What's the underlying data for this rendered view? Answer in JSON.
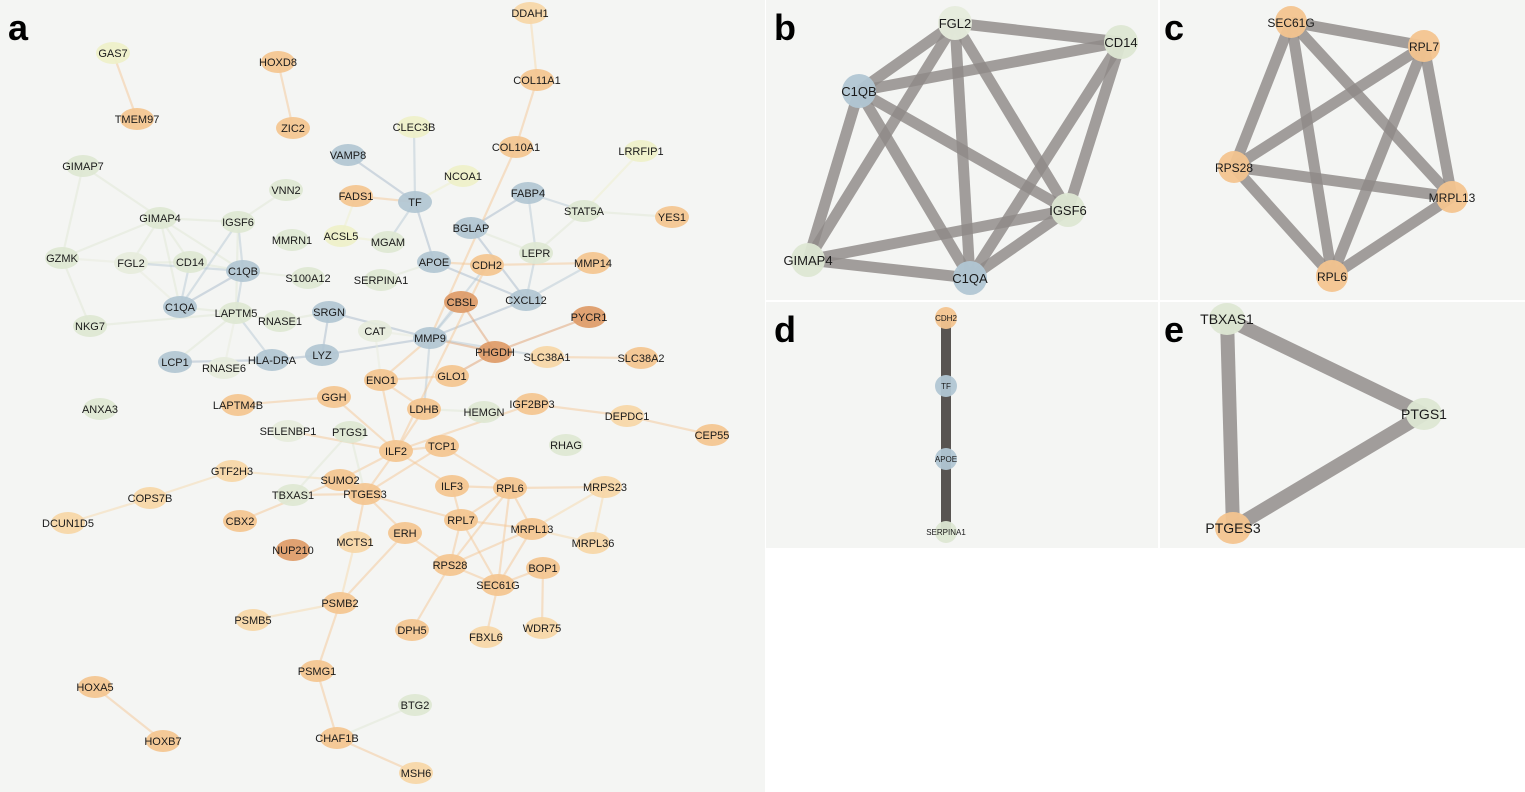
{
  "colors": {
    "green": "#dde7d3",
    "blue": "#b1c6d3",
    "orange": "#f3c48f",
    "dark_orange": "#dd9a67",
    "pale_yellow": "#eef0c9",
    "pale_orange": "#f6d6a6",
    "pale_green": "#e6ecdc",
    "edge_small": "#8f8a87"
  },
  "panels": {
    "a": {
      "label": "a",
      "nodes": [
        {
          "id": "DDAH1",
          "c": "pale_orange"
        },
        {
          "id": "GAS7",
          "c": "pale_yellow"
        },
        {
          "id": "HOXD8",
          "c": "orange"
        },
        {
          "id": "COL11A1",
          "c": "orange"
        },
        {
          "id": "TMEM97",
          "c": "orange"
        },
        {
          "id": "ZIC2",
          "c": "orange"
        },
        {
          "id": "CLEC3B",
          "c": "pale_yellow"
        },
        {
          "id": "COL10A1",
          "c": "orange"
        },
        {
          "id": "LRRFIP1",
          "c": "pale_yellow"
        },
        {
          "id": "VAMP8",
          "c": "blue"
        },
        {
          "id": "NCOA1",
          "c": "pale_yellow"
        },
        {
          "id": "GIMAP7",
          "c": "green"
        },
        {
          "id": "VNN2",
          "c": "green"
        },
        {
          "id": "FADS1",
          "c": "orange"
        },
        {
          "id": "TF",
          "c": "blue"
        },
        {
          "id": "FABP4",
          "c": "blue"
        },
        {
          "id": "STAT5A",
          "c": "green"
        },
        {
          "id": "YES1",
          "c": "orange"
        },
        {
          "id": "GIMAP4",
          "c": "green"
        },
        {
          "id": "IGSF6",
          "c": "green"
        },
        {
          "id": "BGLAP",
          "c": "blue"
        },
        {
          "id": "MMRN1",
          "c": "green"
        },
        {
          "id": "ACSL5",
          "c": "pale_yellow"
        },
        {
          "id": "MGAM",
          "c": "green"
        },
        {
          "id": "GZMK",
          "c": "green"
        },
        {
          "id": "FGL2",
          "c": "pale_green"
        },
        {
          "id": "CD14",
          "c": "green"
        },
        {
          "id": "APOE",
          "c": "blue"
        },
        {
          "id": "LEPR",
          "c": "green"
        },
        {
          "id": "C1QB",
          "c": "blue"
        },
        {
          "id": "CDH2",
          "c": "orange"
        },
        {
          "id": "MMP14",
          "c": "orange"
        },
        {
          "id": "S100A12",
          "c": "green"
        },
        {
          "id": "SERPINA1",
          "c": "green"
        },
        {
          "id": "CXCL12",
          "c": "blue"
        },
        {
          "id": "C1QA",
          "c": "blue"
        },
        {
          "id": "LAPTM5",
          "c": "green"
        },
        {
          "id": "CBSL",
          "c": "dark_orange"
        },
        {
          "id": "SRGN",
          "c": "blue"
        },
        {
          "id": "NKG7",
          "c": "green"
        },
        {
          "id": "RNASE1",
          "c": "green"
        },
        {
          "id": "PYCR1",
          "c": "dark_orange"
        },
        {
          "id": "CAT",
          "c": "pale_green"
        },
        {
          "id": "MMP9",
          "c": "blue"
        },
        {
          "id": "LCP1",
          "c": "blue"
        },
        {
          "id": "HLA-DRA",
          "c": "blue"
        },
        {
          "id": "LYZ",
          "c": "blue"
        },
        {
          "id": "PHGDH",
          "c": "dark_orange"
        },
        {
          "id": "SLC38A1",
          "c": "pale_orange"
        },
        {
          "id": "SLC38A2",
          "c": "orange"
        },
        {
          "id": "RNASE6",
          "c": "pale_green"
        },
        {
          "id": "ENO1",
          "c": "orange"
        },
        {
          "id": "GLO1",
          "c": "orange"
        },
        {
          "id": "ANXA3",
          "c": "green"
        },
        {
          "id": "GGH",
          "c": "orange"
        },
        {
          "id": "LAPTM4B",
          "c": "orange"
        },
        {
          "id": "IGF2BP3",
          "c": "orange"
        },
        {
          "id": "LDHB",
          "c": "orange"
        },
        {
          "id": "HEMGN",
          "c": "green"
        },
        {
          "id": "DEPDC1",
          "c": "pale_orange"
        },
        {
          "id": "SELENBP1",
          "c": "pale_green"
        },
        {
          "id": "PTGS1",
          "c": "green"
        },
        {
          "id": "CEP55",
          "c": "orange"
        },
        {
          "id": "RHAG",
          "c": "green"
        },
        {
          "id": "ILF2",
          "c": "orange"
        },
        {
          "id": "TCP1",
          "c": "orange"
        },
        {
          "id": "GTF2H3",
          "c": "pale_orange"
        },
        {
          "id": "SUMO2",
          "c": "orange"
        },
        {
          "id": "ILF3",
          "c": "orange"
        },
        {
          "id": "RPL6",
          "c": "orange"
        },
        {
          "id": "MRPS23",
          "c": "pale_orange"
        },
        {
          "id": "COPS7B",
          "c": "pale_orange"
        },
        {
          "id": "TBXAS1",
          "c": "green"
        },
        {
          "id": "PTGES3",
          "c": "orange"
        },
        {
          "id": "CBX2",
          "c": "orange"
        },
        {
          "id": "DCUN1D5",
          "c": "pale_orange"
        },
        {
          "id": "RPL7",
          "c": "orange"
        },
        {
          "id": "MRPL13",
          "c": "orange"
        },
        {
          "id": "ERH",
          "c": "orange"
        },
        {
          "id": "MCTS1",
          "c": "pale_orange"
        },
        {
          "id": "MRPL36",
          "c": "pale_orange"
        },
        {
          "id": "NUP210",
          "c": "dark_orange"
        },
        {
          "id": "RPS28",
          "c": "orange"
        },
        {
          "id": "BOP1",
          "c": "orange"
        },
        {
          "id": "SEC61G",
          "c": "orange"
        },
        {
          "id": "PSMB2",
          "c": "orange"
        },
        {
          "id": "PSMB5",
          "c": "pale_orange"
        },
        {
          "id": "DPH5",
          "c": "orange"
        },
        {
          "id": "FBXL6",
          "c": "pale_orange"
        },
        {
          "id": "WDR75",
          "c": "pale_orange"
        },
        {
          "id": "PSMG1",
          "c": "orange"
        },
        {
          "id": "HOXA5",
          "c": "orange"
        },
        {
          "id": "BTG2",
          "c": "green"
        },
        {
          "id": "HOXB7",
          "c": "orange"
        },
        {
          "id": "CHAF1B",
          "c": "orange"
        },
        {
          "id": "MSH6",
          "c": "pale_orange"
        }
      ],
      "edges": [
        [
          "GAS7",
          "TMEM97"
        ],
        [
          "HOXD8",
          "ZIC2"
        ],
        [
          "DDAH1",
          "COL11A1"
        ],
        [
          "COL11A1",
          "COL10A1"
        ],
        [
          "HOXA5",
          "HOXB7"
        ],
        [
          "GIMAP7",
          "GIMAP4"
        ],
        [
          "GIMAP7",
          "GZMK"
        ],
        [
          "GIMAP4",
          "IGSF6"
        ],
        [
          "GIMAP4",
          "FGL2"
        ],
        [
          "GIMAP4",
          "CD14"
        ],
        [
          "GIMAP4",
          "C1QB"
        ],
        [
          "GIMAP4",
          "C1QA"
        ],
        [
          "GIMAP4",
          "GZMK"
        ],
        [
          "GZMK",
          "FGL2"
        ],
        [
          "GZMK",
          "NKG7"
        ],
        [
          "NKG7",
          "LAPTM5"
        ],
        [
          "FGL2",
          "CD14"
        ],
        [
          "FGL2",
          "C1QB"
        ],
        [
          "FGL2",
          "C1QA"
        ],
        [
          "CD14",
          "C1QA"
        ],
        [
          "CD14",
          "C1QB"
        ],
        [
          "IGSF6",
          "C1QB"
        ],
        [
          "IGSF6",
          "C1QA"
        ],
        [
          "IGSF6",
          "LAPTM5"
        ],
        [
          "IGSF6",
          "VNN2"
        ],
        [
          "C1QB",
          "C1QA"
        ],
        [
          "C1QB",
          "LAPTM5"
        ],
        [
          "C1QB",
          "S100A12"
        ],
        [
          "C1QA",
          "LAPTM5"
        ],
        [
          "LAPTM5",
          "RNASE1"
        ],
        [
          "LAPTM5",
          "HLA-DRA"
        ],
        [
          "LAPTM5",
          "LCP1"
        ],
        [
          "LAPTM5",
          "RNASE6"
        ],
        [
          "LCP1",
          "HLA-DRA"
        ],
        [
          "HLA-DRA",
          "LYZ"
        ],
        [
          "HLA-DRA",
          "RNASE6"
        ],
        [
          "LYZ",
          "SRGN"
        ],
        [
          "SRGN",
          "MMP9"
        ],
        [
          "RNASE1",
          "SRGN"
        ],
        [
          "LYZ",
          "MMP9"
        ],
        [
          "CAT",
          "MMP9"
        ],
        [
          "TF",
          "APOE"
        ],
        [
          "TF",
          "VAMP8"
        ],
        [
          "TF",
          "FADS1"
        ],
        [
          "TF",
          "NCOA1"
        ],
        [
          "TF",
          "MGAM"
        ],
        [
          "APOE",
          "SERPINA1"
        ],
        [
          "APOE",
          "CDH2"
        ],
        [
          "APOE",
          "CXCL12"
        ],
        [
          "BGLAP",
          "FABP4"
        ],
        [
          "BGLAP",
          "LEPR"
        ],
        [
          "BGLAP",
          "CXCL12"
        ],
        [
          "FABP4",
          "STAT5A"
        ],
        [
          "FABP4",
          "LEPR"
        ],
        [
          "STAT5A",
          "LRRFIP1"
        ],
        [
          "STAT5A",
          "YES1"
        ],
        [
          "STAT5A",
          "LEPR"
        ],
        [
          "LEPR",
          "CXCL12"
        ],
        [
          "CXCL12",
          "MMP9"
        ],
        [
          "CXCL12",
          "MMP14"
        ],
        [
          "MMP9",
          "CDH2"
        ],
        [
          "MMP9",
          "CBSL"
        ],
        [
          "MMP9",
          "PHGDH"
        ],
        [
          "MMP9",
          "SLC38A1"
        ],
        [
          "MMP9",
          "ENO1"
        ],
        [
          "MMP9",
          "LDHB"
        ],
        [
          "MMP9",
          "COL10A1"
        ],
        [
          "CDH2",
          "MMP14"
        ],
        [
          "CBSL",
          "PHGDH"
        ],
        [
          "PYCR1",
          "PHGDH"
        ],
        [
          "SLC38A1",
          "SLC38A2"
        ],
        [
          "ENO1",
          "LDHB"
        ],
        [
          "ENO1",
          "GLO1"
        ],
        [
          "ENO1",
          "CAT"
        ],
        [
          "ENO1",
          "ILF2"
        ],
        [
          "GLO1",
          "PHGDH"
        ],
        [
          "LDHB",
          "ILF2"
        ],
        [
          "IGF2BP3",
          "DEPDC1"
        ],
        [
          "DEPDC1",
          "CEP55"
        ],
        [
          "IGF2BP3",
          "ILF2"
        ],
        [
          "GGH",
          "LAPTM4B"
        ],
        [
          "GGH",
          "ILF2"
        ],
        [
          "ILF2",
          "ILF3"
        ],
        [
          "ILF2",
          "SUMO2"
        ],
        [
          "ILF2",
          "PTGES3"
        ],
        [
          "ILF2",
          "TCP1"
        ],
        [
          "ILF2",
          "CDH2"
        ],
        [
          "TCP1",
          "RPL6"
        ],
        [
          "TCP1",
          "PTGES3"
        ],
        [
          "SUMO2",
          "PTGES3"
        ],
        [
          "SUMO2",
          "GTF2H3"
        ],
        [
          "GTF2H3",
          "COPS7B"
        ],
        [
          "COPS7B",
          "DCUN1D5"
        ],
        [
          "PTGS1",
          "TBXAS1"
        ],
        [
          "PTGS1",
          "PTGES3"
        ],
        [
          "TBXAS1",
          "PTGES3"
        ],
        [
          "PTGES3",
          "RPL7"
        ],
        [
          "PTGES3",
          "ERH"
        ],
        [
          "PTGES3",
          "MCTS1"
        ],
        [
          "ILF3",
          "RPL6"
        ],
        [
          "ILF3",
          "RPL7"
        ],
        [
          "RPL6",
          "RPL7"
        ],
        [
          "RPL6",
          "MRPL13"
        ],
        [
          "RPL6",
          "RPS28"
        ],
        [
          "RPL6",
          "SEC61G"
        ],
        [
          "RPL6",
          "MRPS23"
        ],
        [
          "RPL7",
          "MRPL13"
        ],
        [
          "RPL7",
          "RPS28"
        ],
        [
          "RPL7",
          "SEC61G"
        ],
        [
          "MRPL13",
          "RPS28"
        ],
        [
          "MRPL13",
          "SEC61G"
        ],
        [
          "MRPL13",
          "MRPL36"
        ],
        [
          "MRPS23",
          "MRPL36"
        ],
        [
          "MRPS23",
          "MRPL13"
        ],
        [
          "RPS28",
          "SEC61G"
        ],
        [
          "RPS28",
          "ERH"
        ],
        [
          "BOP1",
          "WDR75"
        ],
        [
          "BOP1",
          "SEC61G"
        ],
        [
          "SEC61G",
          "FBXL6"
        ],
        [
          "ERH",
          "PSMB2"
        ],
        [
          "PSMB2",
          "PSMB5"
        ],
        [
          "PSMB2",
          "PSMG1"
        ],
        [
          "PSMG1",
          "CHAF1B"
        ],
        [
          "CHAF1B",
          "BTG2"
        ],
        [
          "CHAF1B",
          "MSH6"
        ],
        [
          "MCTS1",
          "PSMB2"
        ],
        [
          "DPH5",
          "RPS28"
        ],
        [
          "SELENBP1",
          "ILF2"
        ],
        [
          "CBX2",
          "SUMO2"
        ],
        [
          "HEMGN",
          "LDHB"
        ],
        [
          "FADS1",
          "ACSL5"
        ],
        [
          "ACSL5",
          "MGAM"
        ],
        [
          "CLEC3B",
          "TF"
        ]
      ]
    },
    "b": {
      "label": "b",
      "nodes": [
        {
          "id": "FGL2",
          "c": "pale_green"
        },
        {
          "id": "CD14",
          "c": "green"
        },
        {
          "id": "C1QB",
          "c": "blue"
        },
        {
          "id": "IGSF6",
          "c": "green"
        },
        {
          "id": "GIMAP4",
          "c": "green"
        },
        {
          "id": "C1QA",
          "c": "blue"
        }
      ],
      "edges": [
        [
          "FGL2",
          "CD14"
        ],
        [
          "FGL2",
          "C1QB"
        ],
        [
          "FGL2",
          "IGSF6"
        ],
        [
          "FGL2",
          "GIMAP4"
        ],
        [
          "FGL2",
          "C1QA"
        ],
        [
          "CD14",
          "C1QB"
        ],
        [
          "CD14",
          "IGSF6"
        ],
        [
          "CD14",
          "C1QA"
        ],
        [
          "C1QB",
          "IGSF6"
        ],
        [
          "C1QB",
          "GIMAP4"
        ],
        [
          "C1QB",
          "C1QA"
        ],
        [
          "IGSF6",
          "GIMAP4"
        ],
        [
          "IGSF6",
          "C1QA"
        ],
        [
          "GIMAP4",
          "C1QA"
        ]
      ]
    },
    "c": {
      "label": "c",
      "nodes": [
        {
          "id": "SEC61G",
          "c": "orange"
        },
        {
          "id": "RPL7",
          "c": "orange"
        },
        {
          "id": "RPS28",
          "c": "orange"
        },
        {
          "id": "MRPL13",
          "c": "orange"
        },
        {
          "id": "RPL6",
          "c": "orange"
        }
      ],
      "edges": [
        [
          "SEC61G",
          "RPL7"
        ],
        [
          "SEC61G",
          "RPS28"
        ],
        [
          "SEC61G",
          "MRPL13"
        ],
        [
          "SEC61G",
          "RPL6"
        ],
        [
          "RPL7",
          "RPS28"
        ],
        [
          "RPL7",
          "MRPL13"
        ],
        [
          "RPL7",
          "RPL6"
        ],
        [
          "RPS28",
          "MRPL13"
        ],
        [
          "RPS28",
          "RPL6"
        ],
        [
          "MRPL13",
          "RPL6"
        ]
      ]
    },
    "d": {
      "label": "d",
      "nodes": [
        {
          "id": "CDH2",
          "c": "orange"
        },
        {
          "id": "TF",
          "c": "blue"
        },
        {
          "id": "APOE",
          "c": "blue"
        },
        {
          "id": "SERPINA1",
          "c": "green"
        }
      ],
      "edges": [
        [
          "CDH2",
          "TF"
        ],
        [
          "TF",
          "APOE"
        ],
        [
          "APOE",
          "SERPINA1"
        ]
      ]
    },
    "e": {
      "label": "e",
      "nodes": [
        {
          "id": "TBXAS1",
          "c": "green"
        },
        {
          "id": "PTGS1",
          "c": "green"
        },
        {
          "id": "PTGES3",
          "c": "orange"
        }
      ],
      "edges": [
        [
          "TBXAS1",
          "PTGS1"
        ],
        [
          "TBXAS1",
          "PTGES3"
        ],
        [
          "PTGS1",
          "PTGES3"
        ]
      ]
    }
  }
}
